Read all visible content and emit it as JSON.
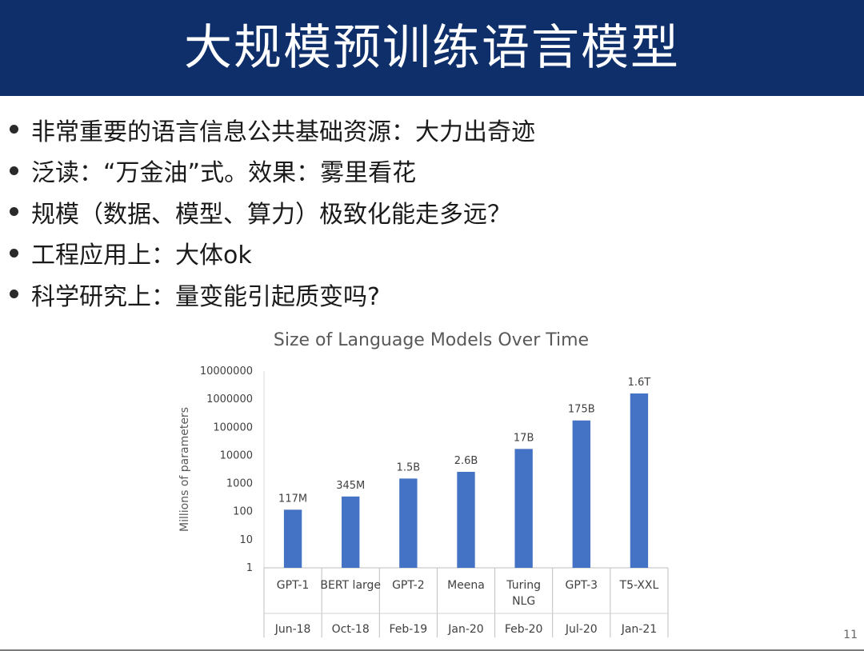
{
  "slide": {
    "title": "大规模预训练语言模型",
    "page_number": "11",
    "bullets": [
      "非常重要的语言信息公共基础资源：大力出奇迹",
      "泛读：“万金油”式。效果：雾里看花",
      "规模（数据、模型、算力）极致化能走多远？",
      "工程应用上：大体ok",
      "科学研究上：量变能引起质变吗?"
    ],
    "colors": {
      "header_bg": "#0f2f6b",
      "bar": "#4472c4"
    }
  },
  "chart_data": {
    "type": "bar",
    "title": "Size of Language Models Over Time",
    "xlabel": "",
    "ylabel": "Millions of parameters",
    "y_scale": "log",
    "ylim": [
      1,
      10000000
    ],
    "y_ticks": [
      "1",
      "10",
      "100",
      "1000",
      "10000",
      "100000",
      "1000000",
      "10000000"
    ],
    "categories": [
      "GPT-1",
      "BERT large",
      "GPT-2",
      "Meena",
      "Turing NLG",
      "GPT-3",
      "T5-XXL"
    ],
    "dates": [
      "Jun-18",
      "Oct-18",
      "Feb-19",
      "Jan-20",
      "Feb-20",
      "Jul-20",
      "Jan-21"
    ],
    "values": [
      117,
      345,
      1500,
      2600,
      17000,
      175000,
      1600000
    ],
    "data_labels": [
      "117M",
      "345M",
      "1.5B",
      "2.6B",
      "17B",
      "175B",
      "1.6T"
    ],
    "grid": false
  }
}
